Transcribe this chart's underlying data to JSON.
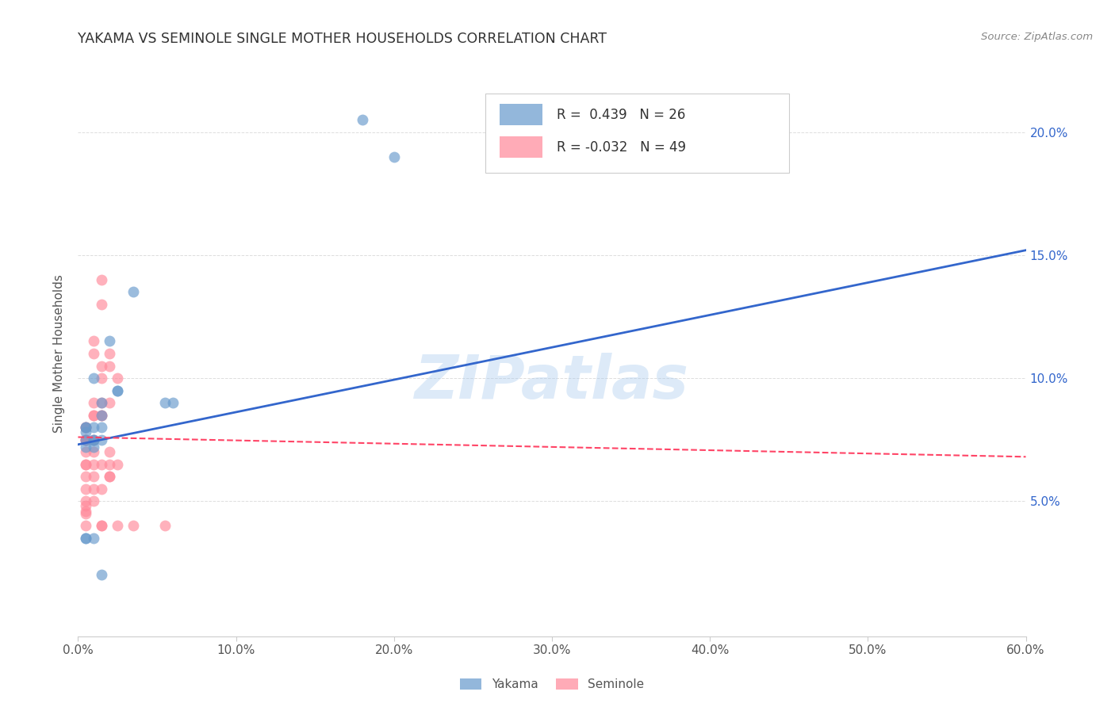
{
  "title": "YAKAMA VS SEMINOLE SINGLE MOTHER HOUSEHOLDS CORRELATION CHART",
  "source": "Source: ZipAtlas.com",
  "ylabel": "Single Mother Households",
  "xlim": [
    0.0,
    0.6
  ],
  "ylim": [
    -0.005,
    0.225
  ],
  "yakama_R": 0.439,
  "yakama_N": 26,
  "seminole_R": -0.032,
  "seminole_N": 49,
  "yakama_color": "#6699CC",
  "seminole_color": "#FF8899",
  "line_yakama_color": "#3366CC",
  "line_seminole_color": "#FF4466",
  "yakama_line": [
    [
      0.0,
      0.073
    ],
    [
      0.6,
      0.152
    ]
  ],
  "seminole_line": [
    [
      0.0,
      0.076
    ],
    [
      0.6,
      0.068
    ]
  ],
  "yakama_scatter": [
    [
      0.01,
      0.075
    ],
    [
      0.01,
      0.1
    ],
    [
      0.02,
      0.115
    ],
    [
      0.015,
      0.085
    ],
    [
      0.015,
      0.08
    ],
    [
      0.015,
      0.075
    ],
    [
      0.01,
      0.08
    ],
    [
      0.015,
      0.09
    ],
    [
      0.01,
      0.075
    ],
    [
      0.005,
      0.08
    ],
    [
      0.005,
      0.075
    ],
    [
      0.005,
      0.08
    ],
    [
      0.005,
      0.078
    ],
    [
      0.005,
      0.072
    ],
    [
      0.01,
      0.072
    ],
    [
      0.025,
      0.095
    ],
    [
      0.025,
      0.095
    ],
    [
      0.035,
      0.135
    ],
    [
      0.055,
      0.09
    ],
    [
      0.06,
      0.09
    ],
    [
      0.18,
      0.205
    ],
    [
      0.2,
      0.19
    ],
    [
      0.005,
      0.035
    ],
    [
      0.005,
      0.035
    ],
    [
      0.01,
      0.035
    ],
    [
      0.015,
      0.02
    ]
  ],
  "seminole_scatter": [
    [
      0.005,
      0.08
    ],
    [
      0.005,
      0.075
    ],
    [
      0.005,
      0.08
    ],
    [
      0.005,
      0.075
    ],
    [
      0.005,
      0.07
    ],
    [
      0.005,
      0.065
    ],
    [
      0.005,
      0.065
    ],
    [
      0.005,
      0.06
    ],
    [
      0.005,
      0.055
    ],
    [
      0.005,
      0.05
    ],
    [
      0.005,
      0.048
    ],
    [
      0.005,
      0.046
    ],
    [
      0.005,
      0.04
    ],
    [
      0.005,
      0.075
    ],
    [
      0.005,
      0.045
    ],
    [
      0.01,
      0.115
    ],
    [
      0.01,
      0.11
    ],
    [
      0.01,
      0.09
    ],
    [
      0.01,
      0.085
    ],
    [
      0.01,
      0.085
    ],
    [
      0.01,
      0.075
    ],
    [
      0.01,
      0.07
    ],
    [
      0.01,
      0.065
    ],
    [
      0.01,
      0.06
    ],
    [
      0.01,
      0.055
    ],
    [
      0.01,
      0.05
    ],
    [
      0.015,
      0.14
    ],
    [
      0.015,
      0.13
    ],
    [
      0.015,
      0.105
    ],
    [
      0.015,
      0.1
    ],
    [
      0.015,
      0.09
    ],
    [
      0.015,
      0.085
    ],
    [
      0.015,
      0.085
    ],
    [
      0.015,
      0.065
    ],
    [
      0.015,
      0.055
    ],
    [
      0.015,
      0.04
    ],
    [
      0.015,
      0.04
    ],
    [
      0.02,
      0.11
    ],
    [
      0.02,
      0.105
    ],
    [
      0.02,
      0.09
    ],
    [
      0.02,
      0.07
    ],
    [
      0.02,
      0.065
    ],
    [
      0.02,
      0.06
    ],
    [
      0.02,
      0.06
    ],
    [
      0.025,
      0.1
    ],
    [
      0.025,
      0.065
    ],
    [
      0.025,
      0.04
    ],
    [
      0.035,
      0.04
    ],
    [
      0.055,
      0.04
    ]
  ],
  "watermark": "ZIPatlas",
  "background_color": "#FFFFFF",
  "grid_color": "#DDDDDD"
}
